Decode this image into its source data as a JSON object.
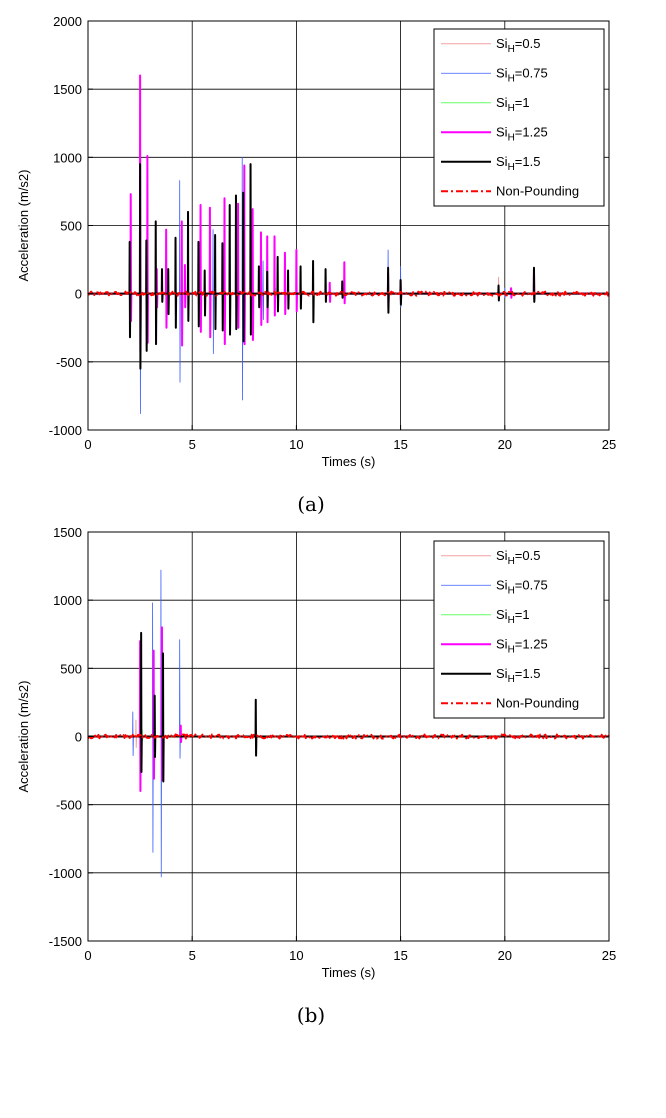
{
  "chart_data": [
    {
      "type": "line",
      "caption": "(a)",
      "xlabel": "Times (s)",
      "ylabel": "Acceleration (m/s2)",
      "xlim": [
        0,
        25
      ],
      "ylim": [
        -1000,
        2000
      ],
      "xticks": [
        0,
        5,
        10,
        15,
        20,
        25
      ],
      "yticks": [
        -1000,
        -500,
        0,
        500,
        1000,
        1500,
        2000
      ],
      "xtick_labels": [
        "0",
        "5",
        "10",
        "15",
        "20",
        "25"
      ],
      "ytick_labels": [
        "-1000",
        "-500",
        "0",
        "500",
        "1000",
        "1500",
        "2000"
      ],
      "grid": true,
      "legend_position": "top-right",
      "series": [
        {
          "name": "Si_H=0.5",
          "legend_prefix": "Si",
          "legend_sub": "H",
          "legend_suffix": "=0.5",
          "color": "#f4a0a0",
          "width": 1,
          "dash": "",
          "spikes": [
            [
              19.7,
              120,
              -40
            ],
            [
              2.5,
              200,
              -150
            ]
          ]
        },
        {
          "name": "Si_H=0.75",
          "legend_prefix": "Si",
          "legend_sub": "H",
          "legend_suffix": "=0.75",
          "color": "#3a5cff",
          "width": 0.8,
          "dash": "",
          "spikes": [
            [
              2.5,
              560,
              -880
            ],
            [
              4.4,
              830,
              -650
            ],
            [
              6.0,
              470,
              -440
            ],
            [
              7.4,
              1000,
              -780
            ],
            [
              8.4,
              240,
              -190
            ],
            [
              14.4,
              320,
              -120
            ],
            [
              15.0,
              200,
              -100
            ],
            [
              20.0,
              40,
              -30
            ]
          ]
        },
        {
          "name": "Si_H=1",
          "legend_prefix": "Si",
          "legend_sub": "H",
          "legend_suffix": "=1",
          "color": "#66ff66",
          "width": 1,
          "dash": "",
          "spikes": [
            [
              3.3,
              60,
              -40
            ],
            [
              9.0,
              40,
              -30
            ]
          ]
        },
        {
          "name": "Si_H=1.25",
          "legend_prefix": "Si",
          "legend_sub": "H",
          "legend_suffix": "=1.25",
          "color": "#ff00ff",
          "width": 2,
          "dash": "",
          "spikes": [
            [
              2.05,
              730,
              -200
            ],
            [
              2.5,
              1600,
              -420
            ],
            [
              2.85,
              1010,
              -360
            ],
            [
              3.3,
              180,
              -100
            ],
            [
              3.75,
              470,
              -250
            ],
            [
              4.5,
              530,
              -380
            ],
            [
              4.65,
              210,
              -100
            ],
            [
              5.4,
              650,
              -280
            ],
            [
              5.85,
              630,
              -320
            ],
            [
              6.55,
              700,
              -370
            ],
            [
              7.2,
              660,
              -250
            ],
            [
              7.5,
              940,
              -370
            ],
            [
              7.9,
              620,
              -340
            ],
            [
              8.3,
              450,
              -230
            ],
            [
              8.6,
              420,
              -210
            ],
            [
              8.95,
              420,
              -160
            ],
            [
              9.45,
              300,
              -150
            ],
            [
              10.0,
              320,
              -130
            ],
            [
              11.6,
              80,
              -60
            ],
            [
              12.3,
              230,
              -70
            ],
            [
              14.4,
              150,
              -100
            ],
            [
              15.0,
              90,
              -50
            ],
            [
              20.3,
              40,
              -30
            ],
            [
              21.4,
              170,
              -40
            ]
          ]
        },
        {
          "name": "Si_H=1.5",
          "legend_prefix": "Si",
          "legend_sub": "H",
          "legend_suffix": "=1.5",
          "color": "#000000",
          "width": 2,
          "dash": "",
          "spikes": [
            [
              2.0,
              380,
              -320
            ],
            [
              2.5,
              950,
              -550
            ],
            [
              2.8,
              390,
              -420
            ],
            [
              3.25,
              530,
              -370
            ],
            [
              3.55,
              180,
              -60
            ],
            [
              3.85,
              180,
              -150
            ],
            [
              4.2,
              410,
              -250
            ],
            [
              4.8,
              600,
              -200
            ],
            [
              5.3,
              380,
              -240
            ],
            [
              5.6,
              170,
              -160
            ],
            [
              6.1,
              430,
              -260
            ],
            [
              6.45,
              370,
              -270
            ],
            [
              6.8,
              650,
              -300
            ],
            [
              7.1,
              720,
              -260
            ],
            [
              7.45,
              740,
              -350
            ],
            [
              7.8,
              950,
              -300
            ],
            [
              8.2,
              200,
              -100
            ],
            [
              8.6,
              160,
              -100
            ],
            [
              9.1,
              270,
              -130
            ],
            [
              9.6,
              170,
              -110
            ],
            [
              10.2,
              200,
              -110
            ],
            [
              10.8,
              240,
              -210
            ],
            [
              11.4,
              180,
              -60
            ],
            [
              12.2,
              90,
              -30
            ],
            [
              14.4,
              190,
              -140
            ],
            [
              15.0,
              100,
              -80
            ],
            [
              19.7,
              60,
              -50
            ],
            [
              21.4,
              190,
              -60
            ]
          ]
        },
        {
          "name": "Non-Pounding",
          "legend_label": "Non-Pounding",
          "color": "#ff0000",
          "width": 2,
          "dash": "7,3,2,3",
          "noise": 15,
          "spikes": []
        }
      ]
    },
    {
      "type": "line",
      "caption": "(b)",
      "xlabel": "Times (s)",
      "ylabel": "Acceleration (m/s2)",
      "xlim": [
        0,
        25
      ],
      "ylim": [
        -1500,
        1500
      ],
      "xticks": [
        0,
        5,
        10,
        15,
        20,
        25
      ],
      "yticks": [
        -1500,
        -1000,
        -500,
        0,
        500,
        1000,
        1500
      ],
      "xtick_labels": [
        "0",
        "5",
        "10",
        "15",
        "20",
        "25"
      ],
      "ytick_labels": [
        "-1500",
        "-1000",
        "-500",
        "0",
        "500",
        "1000",
        "1500"
      ],
      "grid": true,
      "legend_position": "top-right",
      "series": [
        {
          "name": "Si_H=0.5",
          "legend_prefix": "Si",
          "legend_sub": "H",
          "legend_suffix": "=0.5",
          "color": "#f4a0a0",
          "width": 1,
          "dash": "",
          "spikes": [
            [
              2.3,
              120,
              -80
            ]
          ]
        },
        {
          "name": "Si_H=0.75",
          "legend_prefix": "Si",
          "legend_sub": "H",
          "legend_suffix": "=0.75",
          "color": "#3a5cff",
          "width": 0.8,
          "dash": "",
          "spikes": [
            [
              2.15,
              180,
              -140
            ],
            [
              3.1,
              980,
              -850
            ],
            [
              3.5,
              1220,
              -1030
            ],
            [
              4.4,
              710,
              -160
            ]
          ]
        },
        {
          "name": "Si_H=1",
          "legend_prefix": "Si",
          "legend_sub": "H",
          "legend_suffix": "=1",
          "color": "#66ff66",
          "width": 1,
          "dash": "",
          "spikes": [
            [
              2.6,
              50,
              -30
            ]
          ]
        },
        {
          "name": "Si_H=1.25",
          "legend_prefix": "Si",
          "legend_sub": "H",
          "legend_suffix": "=1.25",
          "color": "#ff00ff",
          "width": 2,
          "dash": "",
          "spikes": [
            [
              2.5,
              700,
              -400
            ],
            [
              3.15,
              630,
              -310
            ],
            [
              3.55,
              800,
              -320
            ],
            [
              4.45,
              80,
              -40
            ]
          ]
        },
        {
          "name": "Si_H=1.5",
          "legend_prefix": "Si",
          "legend_sub": "H",
          "legend_suffix": "=1.5",
          "color": "#000000",
          "width": 2,
          "dash": "",
          "spikes": [
            [
              2.55,
              760,
              -260
            ],
            [
              3.2,
              300,
              -150
            ],
            [
              3.6,
              610,
              -330
            ],
            [
              8.05,
              270,
              -140
            ]
          ]
        },
        {
          "name": "Non-Pounding",
          "legend_label": "Non-Pounding",
          "color": "#ff0000",
          "width": 2,
          "dash": "7,3,2,3",
          "noise": 15,
          "spikes": []
        }
      ]
    }
  ]
}
